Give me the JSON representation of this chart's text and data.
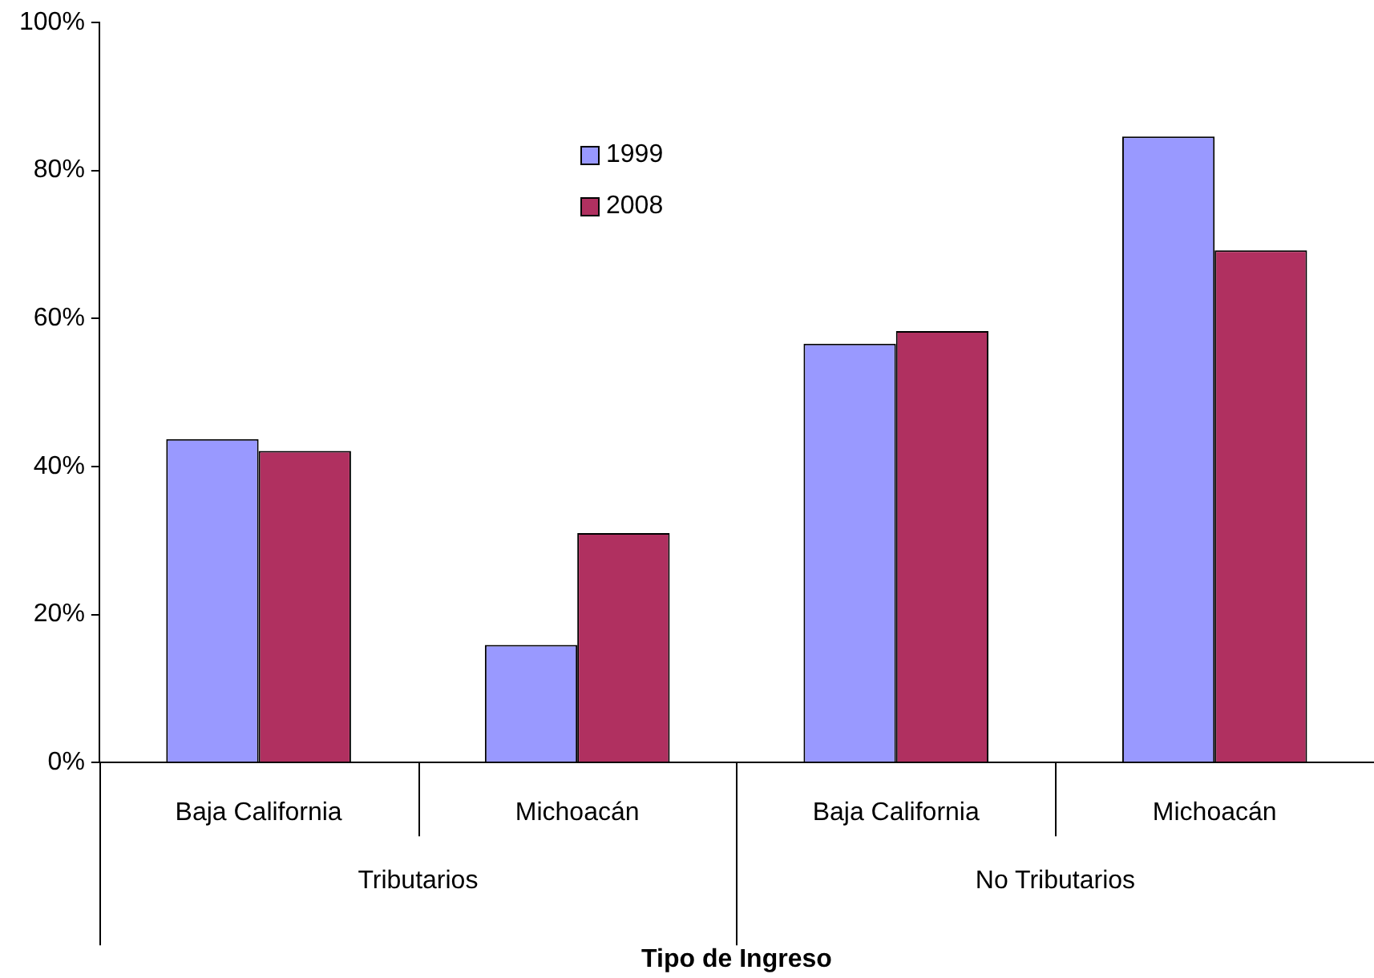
{
  "chart_data": {
    "type": "bar",
    "xlabel": "Tipo de Ingreso",
    "categories": [
      "Baja California",
      "Michoacán",
      "Baja California",
      "Michoacán"
    ],
    "series": [
      {
        "name": "1999",
        "color": "#9999ff",
        "values": [
          43.7,
          15.9,
          56.6,
          84.6
        ]
      },
      {
        "name": "2008",
        "color": "#b03060",
        "values": [
          42.1,
          31.0,
          58.3,
          69.2
        ]
      }
    ],
    "annotations": [
      "Tributarios",
      "No Tributarios"
    ],
    "ylim": [
      0,
      100
    ],
    "yticks": [
      {
        "value": 0,
        "label": "0%"
      },
      {
        "value": 20,
        "label": "20%"
      },
      {
        "value": 40,
        "label": "40%"
      },
      {
        "value": 60,
        "label": "60%"
      },
      {
        "value": 80,
        "label": "80%"
      },
      {
        "value": 100,
        "label": "100%"
      }
    ],
    "grid": false,
    "legend": "top"
  }
}
